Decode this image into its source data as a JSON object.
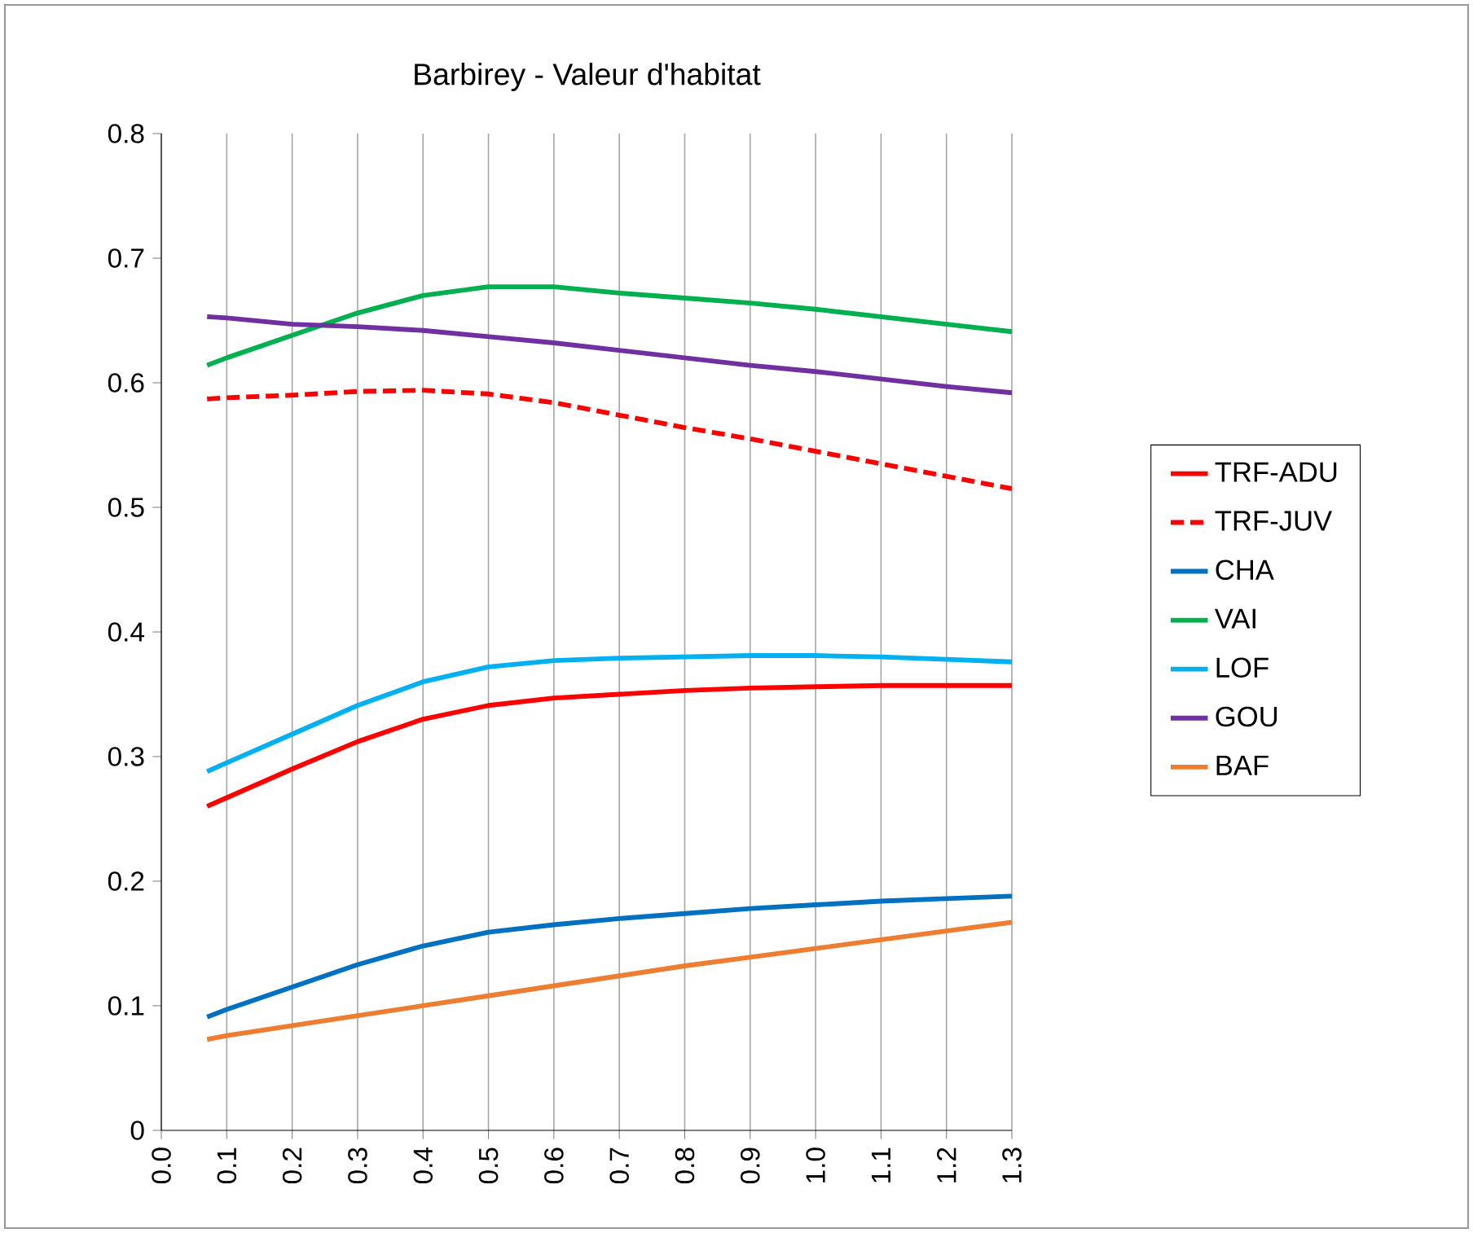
{
  "chart_data": {
    "type": "line",
    "title": "Barbirey - Valeur d'habitat",
    "x": [
      0.07,
      0.1,
      0.2,
      0.3,
      0.4,
      0.5,
      0.6,
      0.7,
      0.8,
      0.9,
      1.0,
      1.1,
      1.2,
      1.3
    ],
    "series": [
      {
        "name": "TRF-ADU",
        "color": "#ff0000",
        "values": [
          0.26,
          0.267,
          0.29,
          0.312,
          0.33,
          0.341,
          0.347,
          0.35,
          0.353,
          0.355,
          0.356,
          0.357,
          0.357,
          0.357
        ]
      },
      {
        "name": "TRF-JUV",
        "color": "#ff0000",
        "line_style": "dashed",
        "values": [
          0.587,
          0.588,
          0.59,
          0.593,
          0.594,
          0.591,
          0.584,
          0.574,
          0.564,
          0.555,
          0.545,
          0.535,
          0.525,
          0.515
        ]
      },
      {
        "name": "CHA",
        "color": "#0070c0",
        "values": [
          0.091,
          0.097,
          0.115,
          0.133,
          0.148,
          0.159,
          0.165,
          0.17,
          0.174,
          0.178,
          0.181,
          0.184,
          0.186,
          0.188
        ]
      },
      {
        "name": "VAI",
        "color": "#00b050",
        "values": [
          0.614,
          0.62,
          0.638,
          0.656,
          0.67,
          0.677,
          0.677,
          0.672,
          0.668,
          0.664,
          0.659,
          0.653,
          0.647,
          0.641
        ]
      },
      {
        "name": "LOF",
        "color": "#00b0f0",
        "values": [
          0.288,
          0.295,
          0.318,
          0.341,
          0.36,
          0.372,
          0.377,
          0.379,
          0.38,
          0.381,
          0.381,
          0.38,
          0.378,
          0.376
        ]
      },
      {
        "name": "GOU",
        "color": "#7030a0",
        "values": [
          0.653,
          0.652,
          0.647,
          0.645,
          0.642,
          0.637,
          0.632,
          0.626,
          0.62,
          0.614,
          0.609,
          0.603,
          0.597,
          0.592
        ]
      },
      {
        "name": "BAF",
        "color": "#ed7d31",
        "values": [
          0.073,
          0.076,
          0.084,
          0.092,
          0.1,
          0.108,
          0.116,
          0.124,
          0.132,
          0.139,
          0.146,
          0.153,
          0.16,
          0.167
        ]
      }
    ],
    "xlim": [
      0,
      1.3
    ],
    "xticks": [
      {
        "value": 0,
        "label": "0.0"
      },
      0.1,
      0.2,
      0.3,
      0.4,
      0.5,
      0.6,
      0.7,
      0.8,
      0.9,
      {
        "value": 1.0,
        "label": "1.0"
      },
      1.1,
      1.2,
      1.3
    ],
    "ylim": [
      0,
      0.8
    ],
    "yticks": [
      0,
      0.1,
      0.2,
      0.3,
      0.4,
      0.5,
      0.6,
      0.7,
      0.8
    ],
    "grid": "x",
    "legend": "right",
    "marker": "none"
  }
}
